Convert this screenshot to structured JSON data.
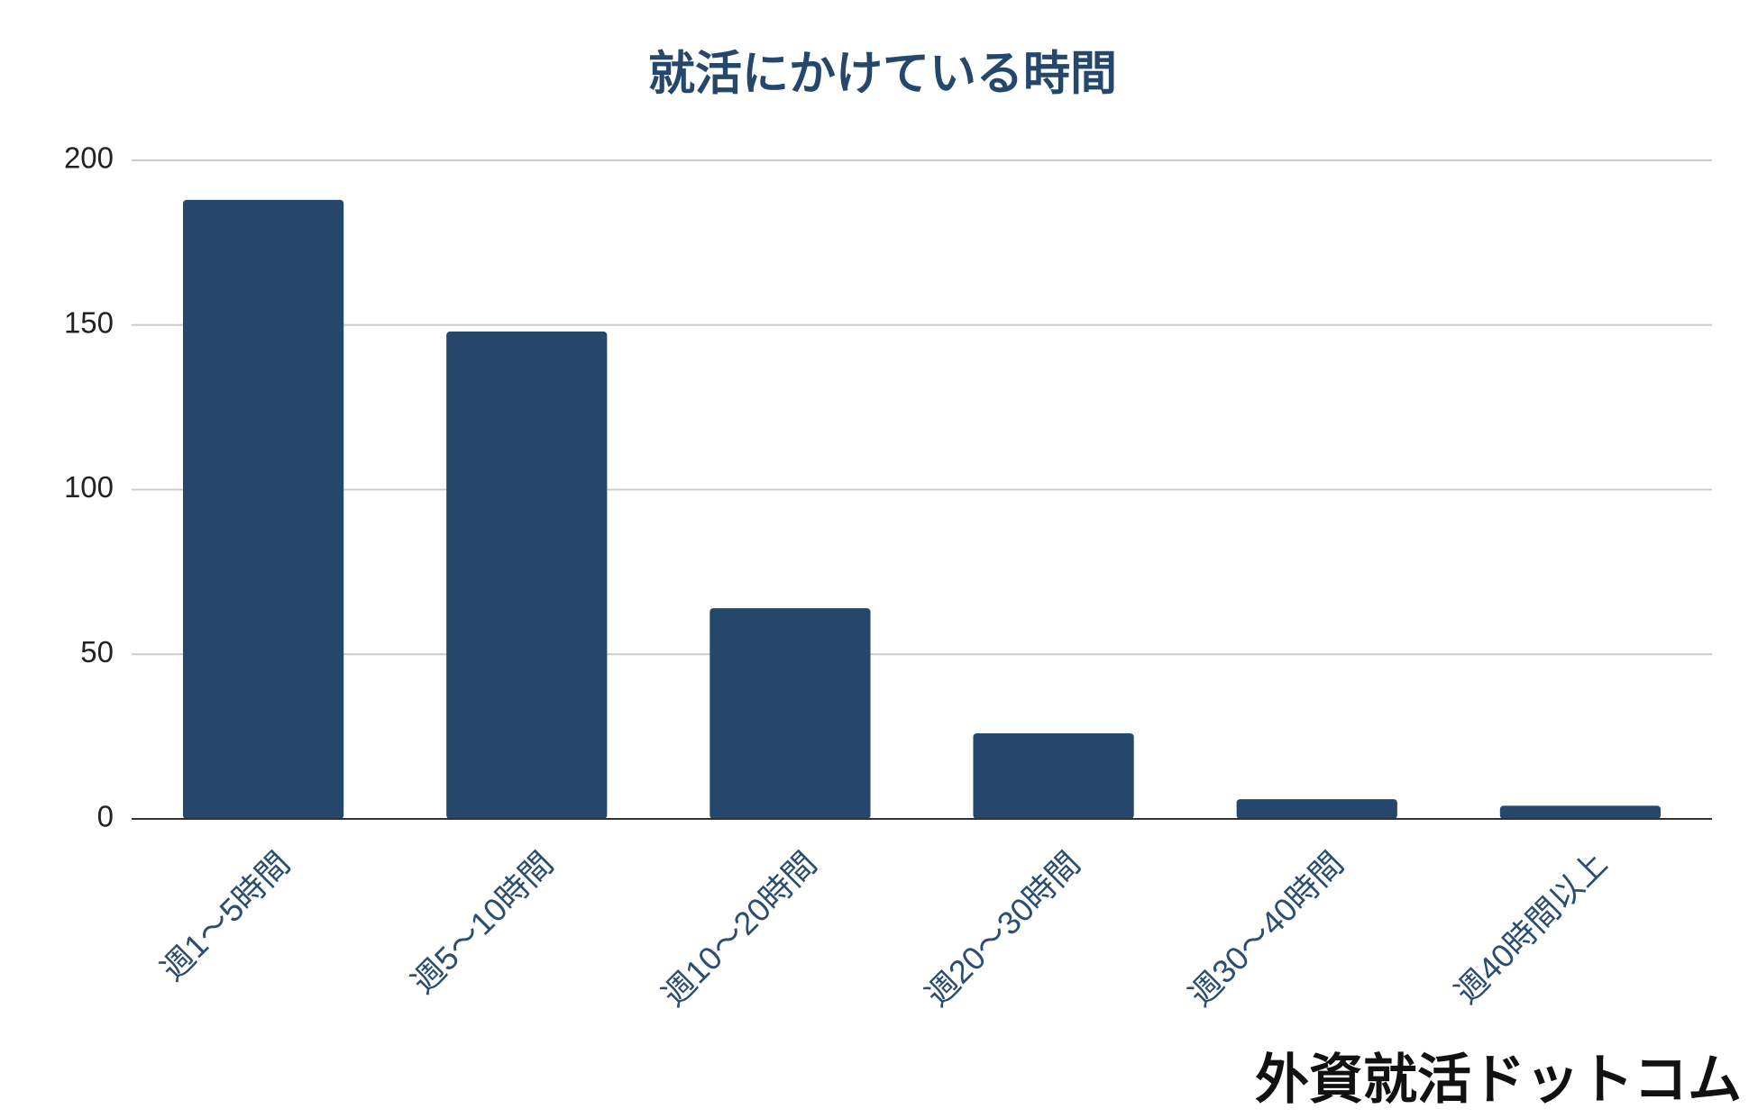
{
  "chart_data": {
    "type": "bar",
    "title": "就活にかけている時間",
    "categories": [
      "週1〜5時間",
      "週5〜10時間",
      "週10〜20時間",
      "週20〜30時間",
      "週30〜40時間",
      "週40時間以上"
    ],
    "values": [
      188,
      148,
      64,
      26,
      6,
      4
    ],
    "color": "#24476b",
    "ylim": [
      0,
      200
    ],
    "yticks": [
      0,
      50,
      100,
      150,
      200
    ],
    "grid": true,
    "watermark": "外資就活ドットコム"
  }
}
